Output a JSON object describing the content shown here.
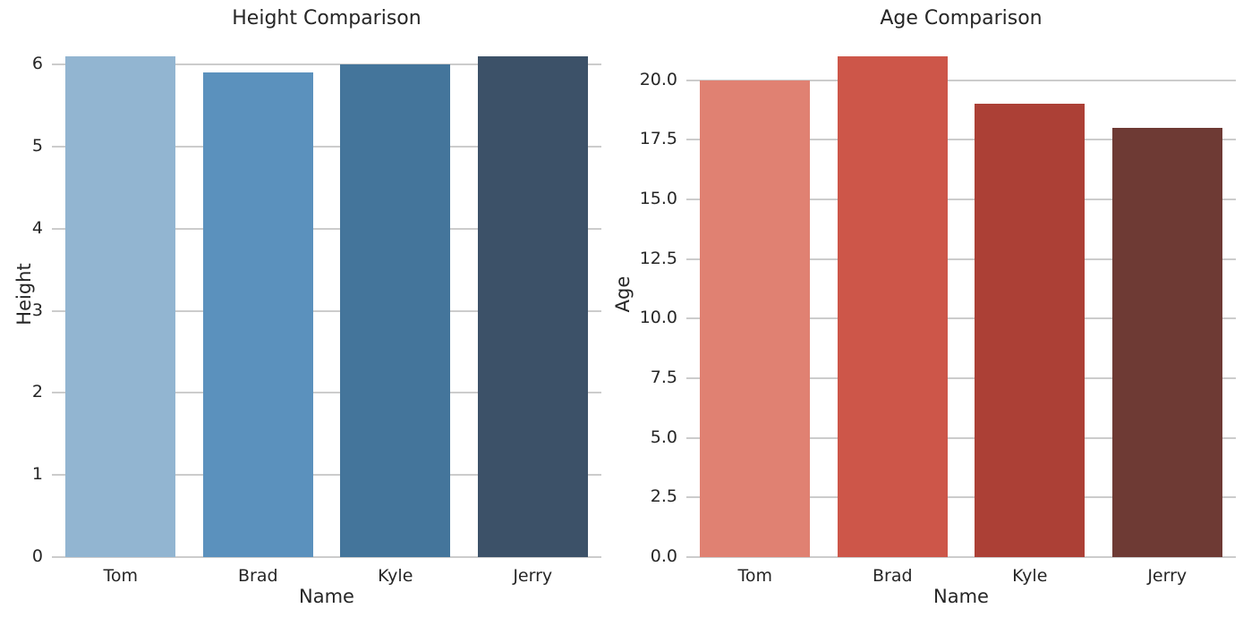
{
  "style": {
    "background": "#ffffff",
    "grid_color": "#cccccc",
    "text_color": "#262626"
  },
  "chart_data": [
    {
      "type": "bar",
      "title": "Height Comparison",
      "xlabel": "Name",
      "ylabel": "Height",
      "categories": [
        "Tom",
        "Brad",
        "Kyle",
        "Jerry"
      ],
      "values": [
        6.1,
        5.9,
        6.0,
        6.1
      ],
      "ylim": [
        0,
        6.405
      ],
      "yticks": [
        0,
        1,
        2,
        3,
        4,
        5,
        6
      ],
      "ytick_labels": [
        "0",
        "1",
        "2",
        "3",
        "4",
        "5",
        "6"
      ],
      "bar_colors": [
        "#92b5d1",
        "#5b91bd",
        "#44759b",
        "#3c5168"
      ],
      "grid": true,
      "legend": null
    },
    {
      "type": "bar",
      "title": "Age Comparison",
      "xlabel": "Name",
      "ylabel": "Age",
      "categories": [
        "Tom",
        "Brad",
        "Kyle",
        "Jerry"
      ],
      "values": [
        20,
        21,
        19,
        18
      ],
      "ylim": [
        0,
        22.05
      ],
      "yticks": [
        0,
        2.5,
        5,
        7.5,
        10,
        12.5,
        15,
        17.5,
        20
      ],
      "ytick_labels": [
        "0.0",
        "2.5",
        "5.0",
        "7.5",
        "10.0",
        "12.5",
        "15.0",
        "17.5",
        "20.0"
      ],
      "bar_colors": [
        "#e08172",
        "#cd5649",
        "#ac4036",
        "#6e3a34"
      ],
      "grid": true,
      "legend": null
    }
  ]
}
